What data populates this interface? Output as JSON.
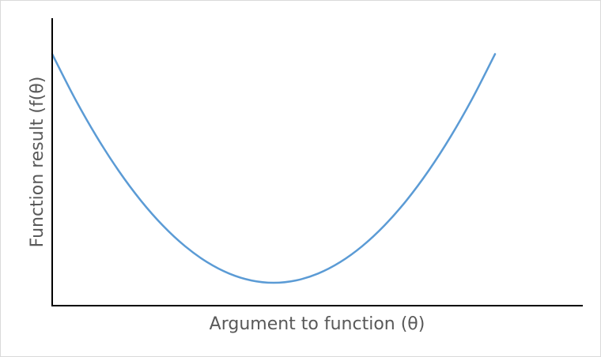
{
  "chart_data": {
    "type": "line",
    "title": "",
    "xlabel": "Argument to function (θ)",
    "ylabel": "Function result (f(θ)",
    "x": [
      0,
      0.05,
      0.1,
      0.15,
      0.2,
      0.25,
      0.3,
      0.35,
      0.4,
      0.45,
      0.5,
      0.55,
      0.6,
      0.65,
      0.7,
      0.75,
      0.8,
      0.85,
      0.9,
      0.95,
      1
    ],
    "series": [
      {
        "values": [
          1,
          0.81,
          0.64,
          0.49,
          0.36,
          0.25,
          0.16,
          0.09,
          0.04,
          0.01,
          0,
          0.01,
          0.04,
          0.09,
          0.16,
          0.25,
          0.36,
          0.49,
          0.64,
          0.81,
          1
        ],
        "color": "#5b9bd5"
      }
    ],
    "xlim": [
      0,
      1.2
    ],
    "ylim": [
      -0.1,
      1.15
    ],
    "grid": false,
    "ticks_shown": false
  }
}
